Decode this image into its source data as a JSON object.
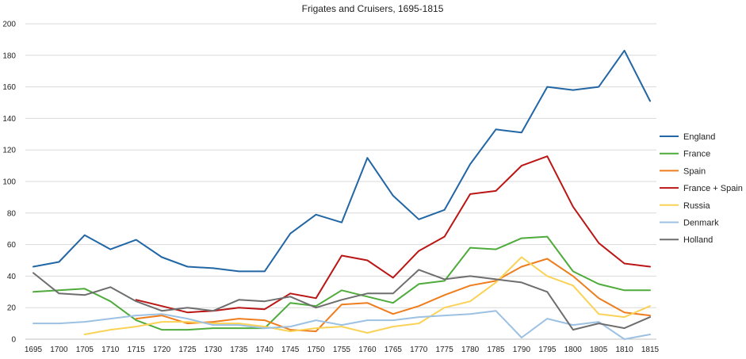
{
  "chart_data": {
    "type": "line",
    "title": "Frigates and Cruisers, 1695-1815",
    "xlabel": "",
    "ylabel": "",
    "ylim": [
      0,
      200
    ],
    "yticks": [
      0,
      20,
      40,
      60,
      80,
      100,
      120,
      140,
      160,
      180,
      200
    ],
    "grid": "horizontal",
    "legend_position": "right",
    "categories": [
      "1695",
      "1700",
      "1705",
      "1710",
      "1715",
      "1720",
      "1725",
      "1730",
      "1735",
      "1740",
      "1745",
      "1750",
      "1755",
      "1760",
      "1765",
      "1770",
      "1775",
      "1780",
      "1785",
      "1790",
      "1795",
      "1800",
      "1805",
      "1810",
      "1815"
    ],
    "series": [
      {
        "name": "England",
        "color": "#2266a5",
        "values": [
          46,
          49,
          66,
          57,
          63,
          52,
          46,
          45,
          43,
          43,
          67,
          79,
          74,
          115,
          91,
          76,
          82,
          111,
          133,
          131,
          160,
          158,
          160,
          183,
          151
        ]
      },
      {
        "name": "France",
        "color": "#4fab3b",
        "values": [
          30,
          31,
          32,
          24,
          12,
          6,
          6,
          7,
          7,
          7,
          23,
          21,
          31,
          27,
          23,
          35,
          37,
          58,
          57,
          64,
          65,
          43,
          35,
          31,
          31
        ]
      },
      {
        "name": "Spain",
        "color": "#ee7d1e",
        "values": [
          null,
          null,
          null,
          null,
          13,
          15,
          10,
          11,
          13,
          12,
          6,
          5,
          22,
          23,
          16,
          21,
          28,
          34,
          37,
          46,
          51,
          40,
          26,
          17,
          15
        ]
      },
      {
        "name": "France + Spain",
        "color": "#bb1616",
        "values": [
          null,
          null,
          null,
          null,
          25,
          21,
          17,
          18,
          20,
          19,
          29,
          26,
          53,
          50,
          39,
          56,
          65,
          92,
          94,
          110,
          116,
          84,
          61,
          48,
          46
        ]
      },
      {
        "name": "Russia",
        "color": "#fad256",
        "values": [
          null,
          null,
          3,
          6,
          8,
          11,
          11,
          10,
          10,
          8,
          5,
          7,
          8,
          4,
          8,
          10,
          20,
          24,
          36,
          52,
          40,
          34,
          16,
          14,
          21
        ]
      },
      {
        "name": "Denmark",
        "color": "#9cc1e2",
        "values": [
          10,
          10,
          11,
          13,
          15,
          16,
          13,
          9,
          9,
          7,
          8,
          12,
          9,
          12,
          12,
          14,
          15,
          16,
          18,
          1,
          13,
          9,
          11,
          0,
          3
        ]
      },
      {
        "name": "Holland",
        "color": "#6e6e6e",
        "values": [
          42,
          29,
          28,
          33,
          24,
          18,
          20,
          18,
          25,
          24,
          27,
          20,
          25,
          29,
          29,
          44,
          38,
          40,
          38,
          36,
          30,
          6,
          10,
          7,
          14
        ]
      }
    ]
  }
}
